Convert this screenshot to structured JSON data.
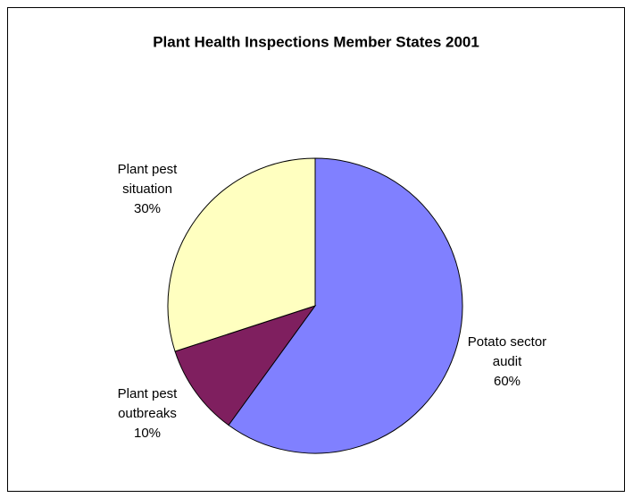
{
  "chart_data": {
    "type": "pie",
    "title": "Plant Health Inspections Member States 2001",
    "categories": [
      "Potato sector audit",
      "Plant pest outbreaks",
      "Plant pest situation"
    ],
    "values": [
      60,
      10,
      30
    ],
    "value_labels": [
      "60%",
      "10%",
      "30%"
    ],
    "colors": [
      "#8080ff",
      "#7f1f5f",
      "#ffffc0"
    ]
  }
}
